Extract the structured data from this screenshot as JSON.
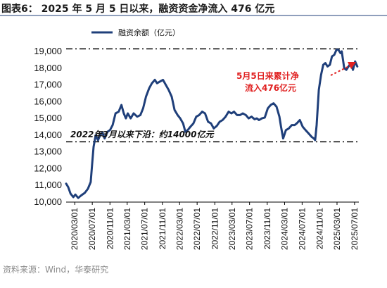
{
  "figure_title": "图表6：  2025 年 5 月 5 日以来，融资资金净流入 476 亿元",
  "source": "资料来源：Wind，华泰研究",
  "colors": {
    "series": "#1f3f7a",
    "accent": "#e02020",
    "title_bar": "#1f3f7a"
  },
  "chart_data": {
    "type": "line",
    "title": "",
    "xlabel": "",
    "ylabel": "",
    "ylim": [
      10000,
      19000
    ],
    "yticks": [
      10000,
      11000,
      12000,
      13000,
      14000,
      15000,
      16000,
      17000,
      18000,
      19000
    ],
    "ytick_labels": [
      "10,000",
      "11,000",
      "12,000",
      "13,000",
      "14,000",
      "15,000",
      "16,000",
      "17,000",
      "18,000",
      "19,000"
    ],
    "xlim": [
      "2020-01-01",
      "2025-07-31"
    ],
    "xtick_labels": [
      "2020/03/01",
      "2020/07/01",
      "2020/11/01",
      "2021/03/01",
      "2021/07/01",
      "2021/11/01",
      "2022/03/01",
      "2022/07/01",
      "2022/11/01",
      "2023/03/01",
      "2023/07/01",
      "2023/11/01",
      "2024/03/01",
      "2024/07/01",
      "2024/11/01",
      "2025/03/01",
      "2025/07/01"
    ],
    "xticks": [
      "2020-03-01",
      "2020-07-01",
      "2020-11-01",
      "2021-03-01",
      "2021-07-01",
      "2021-11-01",
      "2022-03-01",
      "2022-07-01",
      "2022-11-01",
      "2023-03-01",
      "2023-07-01",
      "2023-11-01",
      "2024-03-01",
      "2024-07-01",
      "2024-11-01",
      "2025-03-01",
      "2025-07-01"
    ],
    "legend": {
      "position": "top-left",
      "entries": [
        "融资余额（亿元）"
      ]
    },
    "grid": false,
    "series": [
      {
        "name": "融资余额（亿元）",
        "x": [
          "2020-01-01",
          "2020-01-15",
          "2020-02-01",
          "2020-02-20",
          "2020-03-05",
          "2020-03-25",
          "2020-04-15",
          "2020-05-10",
          "2020-06-01",
          "2020-06-20",
          "2020-07-01",
          "2020-07-10",
          "2020-07-25",
          "2020-08-10",
          "2020-08-25",
          "2020-09-10",
          "2020-09-25",
          "2020-10-15",
          "2020-11-01",
          "2020-11-20",
          "2020-12-10",
          "2021-01-01",
          "2021-01-20",
          "2021-02-05",
          "2021-02-20",
          "2021-03-05",
          "2021-03-25",
          "2021-04-15",
          "2021-05-10",
          "2021-06-01",
          "2021-06-20",
          "2021-07-10",
          "2021-08-01",
          "2021-08-20",
          "2021-09-10",
          "2021-09-25",
          "2021-10-15",
          "2021-11-05",
          "2021-11-25",
          "2021-12-15",
          "2022-01-05",
          "2022-01-25",
          "2022-02-15",
          "2022-03-05",
          "2022-03-25",
          "2022-04-10",
          "2022-04-26",
          "2022-05-15",
          "2022-06-05",
          "2022-06-25",
          "2022-07-15",
          "2022-08-05",
          "2022-08-25",
          "2022-09-15",
          "2022-10-05",
          "2022-10-25",
          "2022-11-15",
          "2022-12-05",
          "2022-12-25",
          "2023-01-15",
          "2023-02-05",
          "2023-02-25",
          "2023-03-15",
          "2023-04-05",
          "2023-04-25",
          "2023-05-15",
          "2023-06-05",
          "2023-06-25",
          "2023-07-15",
          "2023-08-05",
          "2023-08-20",
          "2023-09-05",
          "2023-09-25",
          "2023-10-15",
          "2023-11-05",
          "2023-11-25",
          "2023-12-15",
          "2024-01-05",
          "2024-01-25",
          "2024-02-05",
          "2024-02-20",
          "2024-03-10",
          "2024-03-30",
          "2024-04-20",
          "2024-05-10",
          "2024-05-25",
          "2024-06-15",
          "2024-07-05",
          "2024-07-25",
          "2024-08-15",
          "2024-09-05",
          "2024-09-20",
          "2024-09-30",
          "2024-10-10",
          "2024-10-25",
          "2024-11-10",
          "2024-11-25",
          "2024-12-10",
          "2024-12-25",
          "2025-01-10",
          "2025-01-25",
          "2025-02-10",
          "2025-02-25",
          "2025-03-10",
          "2025-03-25",
          "2025-04-03",
          "2025-04-10",
          "2025-04-20",
          "2025-05-05",
          "2025-05-20",
          "2025-06-05",
          "2025-06-20",
          "2025-07-05",
          "2025-07-20"
        ],
        "values": [
          11100,
          10900,
          10500,
          10300,
          10450,
          10250,
          10400,
          10550,
          10800,
          11200,
          12400,
          13300,
          14000,
          13700,
          14000,
          14150,
          13800,
          14200,
          14300,
          14600,
          15300,
          15400,
          15800,
          15300,
          15000,
          15300,
          15000,
          15300,
          15100,
          15200,
          15600,
          16300,
          16800,
          17100,
          17300,
          17100,
          17200,
          17300,
          17000,
          16700,
          16300,
          15500,
          15200,
          15000,
          14700,
          14200,
          14300,
          14500,
          14700,
          15100,
          15200,
          15400,
          15300,
          14800,
          14700,
          14400,
          14550,
          14800,
          14900,
          15100,
          15400,
          15300,
          15400,
          15200,
          15200,
          15300,
          15200,
          15000,
          15100,
          14950,
          15000,
          14900,
          15000,
          15050,
          15600,
          15800,
          15900,
          15700,
          15100,
          14500,
          13800,
          14300,
          14400,
          14600,
          14600,
          14700,
          14900,
          14500,
          14300,
          14100,
          13900,
          13800,
          13700,
          14600,
          16700,
          17600,
          18200,
          18300,
          18100,
          18200,
          18700,
          18800,
          19100,
          19100,
          18900,
          19000,
          18600,
          18000,
          17900,
          18100,
          18300,
          17900,
          18400,
          18100
        ]
      }
    ],
    "reference_lines": [
      {
        "value": 19150,
        "style": "dash-dot"
      },
      {
        "value": 13600,
        "style": "dash-dot"
      }
    ],
    "annotations": [
      {
        "text_lines": [
          "5月5日来累计净",
          "流入476亿元"
        ],
        "color": "#e02020"
      },
      {
        "text": "2022年3月以来下沿：约14000亿元",
        "color": "#111111"
      }
    ]
  }
}
